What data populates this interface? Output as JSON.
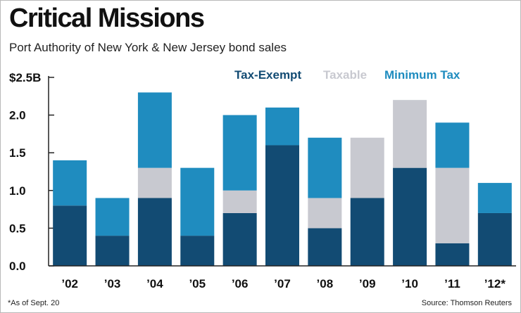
{
  "title": "Critical Missions",
  "subtitle": "Port Authority of New York & New Jersey bond sales",
  "footnote": "*As of Sept. 20",
  "source": "Source: Thomson Reuters",
  "colors": {
    "tax_exempt": "#124b73",
    "taxable": "#c8c9d0",
    "minimum_tax": "#1f8cbf",
    "axis": "#222222"
  },
  "chart_data": {
    "type": "bar",
    "stacked": true,
    "title": "Critical Missions",
    "subtitle": "Port Authority of New York & New Jersey bond sales",
    "xlabel": "",
    "ylabel": "",
    "unit_label": "$2.5B",
    "ylim": [
      0,
      2.5
    ],
    "yticks": [
      {
        "value": 0,
        "label": "0.0"
      },
      {
        "value": 0.5,
        "label": "0.5"
      },
      {
        "value": 1.0,
        "label": "1.0"
      },
      {
        "value": 1.5,
        "label": "1.5"
      },
      {
        "value": 2.0,
        "label": "2.0"
      },
      {
        "value": 2.5,
        "label": "$2.5B"
      }
    ],
    "grid": false,
    "legend_position": "top",
    "categories": [
      "’02",
      "’03",
      "’04",
      "’05",
      "’06",
      "’07",
      "’08",
      "’09",
      "’10",
      "’11",
      "’12*"
    ],
    "series": [
      {
        "name": "Tax-Exempt",
        "key": "tax_exempt",
        "values": [
          0.8,
          0.4,
          0.9,
          0.4,
          0.7,
          1.6,
          0.5,
          0.9,
          1.3,
          0.3,
          0.7
        ]
      },
      {
        "name": "Taxable",
        "key": "taxable",
        "values": [
          0,
          0,
          0.4,
          0,
          0.3,
          0,
          0.4,
          0.8,
          0.9,
          1.0,
          0
        ]
      },
      {
        "name": "Minimum Tax",
        "key": "minimum_tax",
        "values": [
          0.6,
          0.5,
          1.0,
          0.9,
          1.0,
          0.5,
          0.8,
          0,
          0,
          0.6,
          0.4
        ]
      }
    ]
  }
}
